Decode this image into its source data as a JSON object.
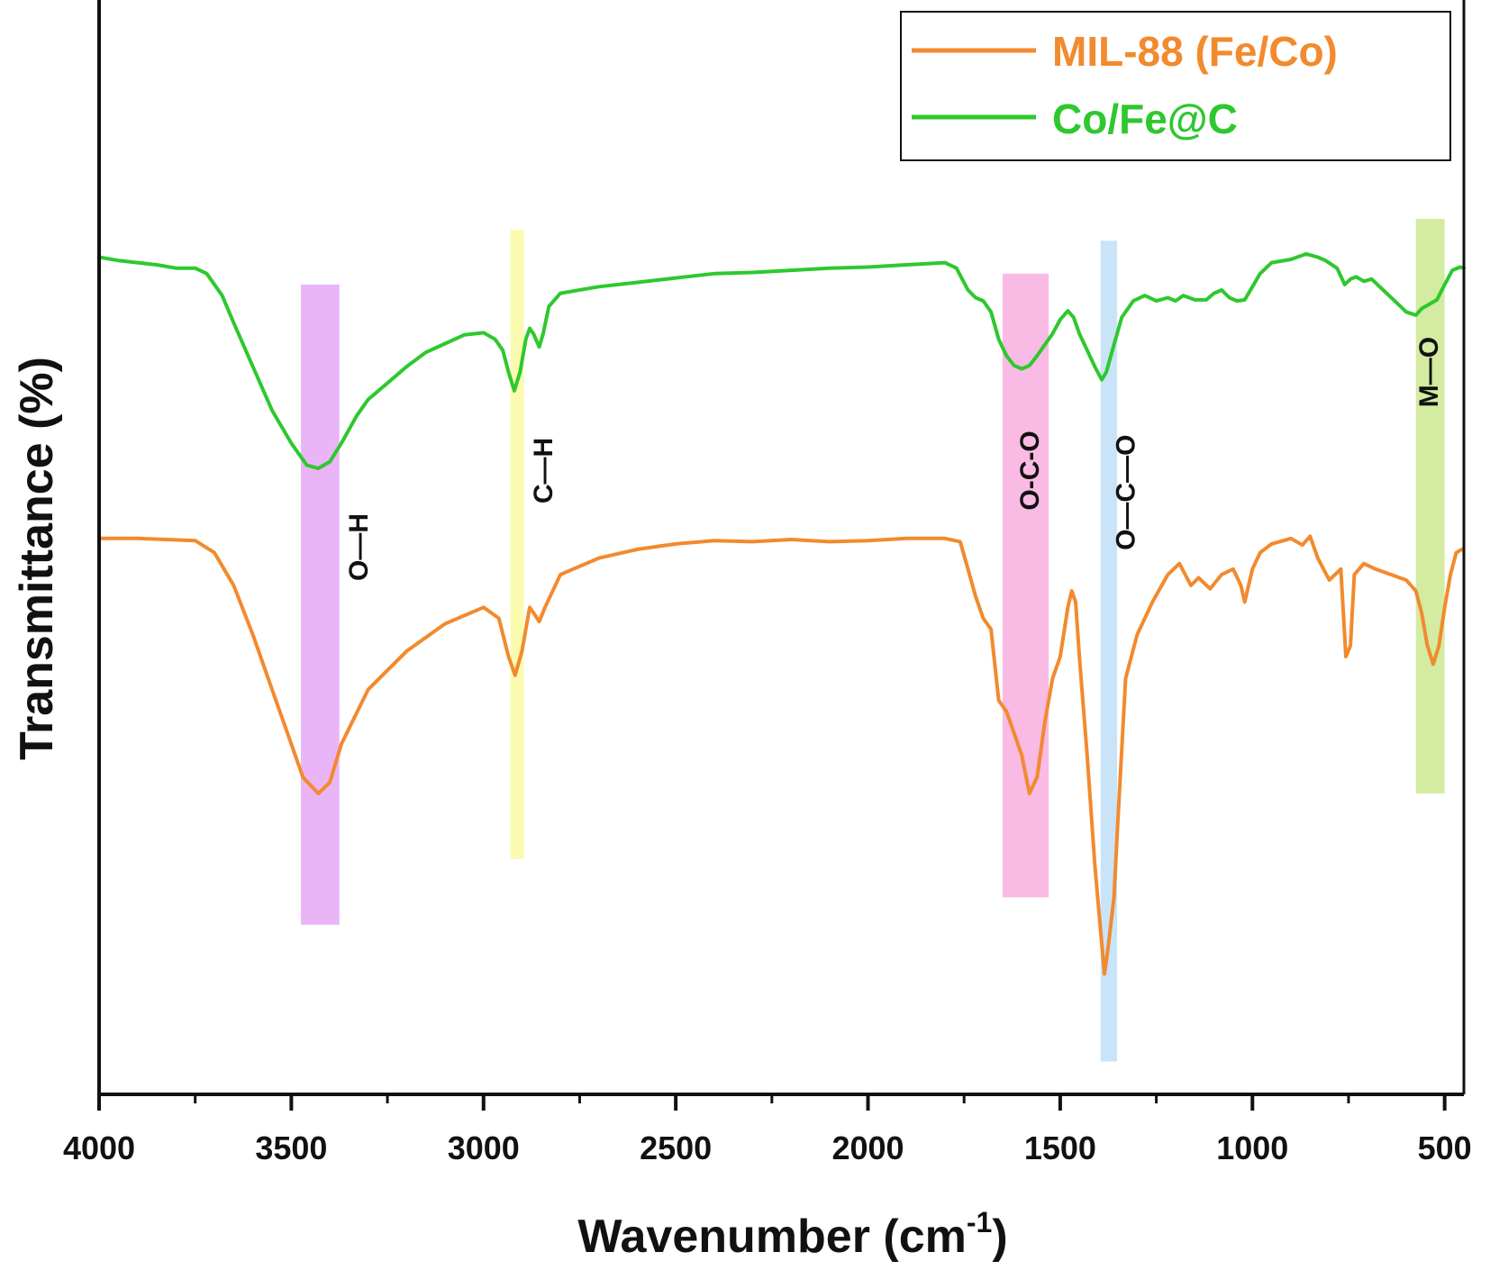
{
  "chart_data": {
    "type": "line",
    "title": "",
    "xlabel": "Wavenumber (cm",
    "xlabel_sup": "-1",
    "xlabel_close": ")",
    "ylabel": "Transmittance (%)",
    "xlim": [
      4000,
      450
    ],
    "ylim": [
      0,
      100
    ],
    "x_ticks": [
      4000,
      3500,
      3000,
      2500,
      2000,
      1500,
      1000,
      500
    ],
    "x_tick_labels": [
      "4000",
      "3500",
      "3000",
      "2500",
      "2000",
      "1500",
      "1000",
      "500"
    ],
    "legend_position": "top-right",
    "legend": [
      {
        "name": "MIL-88 (Fe/Co)",
        "color": "#f28a2e"
      },
      {
        "name": "Co/Fe@C",
        "color": "#2ec82e"
      }
    ],
    "series": [
      {
        "name": "MIL-88 (Fe/Co)",
        "color": "#f28a2e",
        "points": [
          [
            4000,
            50.8
          ],
          [
            3900,
            50.8
          ],
          [
            3750,
            50.6
          ],
          [
            3700,
            49.5
          ],
          [
            3650,
            46.5
          ],
          [
            3600,
            42
          ],
          [
            3550,
            37
          ],
          [
            3500,
            32
          ],
          [
            3470,
            29
          ],
          [
            3430,
            27.5
          ],
          [
            3400,
            28.5
          ],
          [
            3370,
            32
          ],
          [
            3300,
            37
          ],
          [
            3200,
            40.5
          ],
          [
            3100,
            43
          ],
          [
            3000,
            44.5
          ],
          [
            2960,
            43.5
          ],
          [
            2935,
            40
          ],
          [
            2918,
            38.3
          ],
          [
            2900,
            40.5
          ],
          [
            2880,
            44.5
          ],
          [
            2870,
            44
          ],
          [
            2855,
            43.2
          ],
          [
            2840,
            44.5
          ],
          [
            2800,
            47.5
          ],
          [
            2700,
            49
          ],
          [
            2600,
            49.8
          ],
          [
            2500,
            50.3
          ],
          [
            2400,
            50.6
          ],
          [
            2300,
            50.5
          ],
          [
            2200,
            50.7
          ],
          [
            2100,
            50.5
          ],
          [
            2000,
            50.6
          ],
          [
            1900,
            50.8
          ],
          [
            1800,
            50.8
          ],
          [
            1760,
            50.5
          ],
          [
            1740,
            48
          ],
          [
            1720,
            45.5
          ],
          [
            1700,
            43.5
          ],
          [
            1680,
            42.5
          ],
          [
            1660,
            36
          ],
          [
            1640,
            35
          ],
          [
            1620,
            33
          ],
          [
            1600,
            31
          ],
          [
            1580,
            27.5
          ],
          [
            1560,
            29
          ],
          [
            1540,
            34
          ],
          [
            1520,
            38
          ],
          [
            1500,
            40
          ],
          [
            1480,
            44.5
          ],
          [
            1470,
            46
          ],
          [
            1460,
            45
          ],
          [
            1450,
            40
          ],
          [
            1430,
            31
          ],
          [
            1410,
            21
          ],
          [
            1395,
            15
          ],
          [
            1385,
            11
          ],
          [
            1375,
            13.5
          ],
          [
            1360,
            18
          ],
          [
            1350,
            25
          ],
          [
            1330,
            38
          ],
          [
            1300,
            42
          ],
          [
            1260,
            45
          ],
          [
            1220,
            47.5
          ],
          [
            1190,
            48.5
          ],
          [
            1160,
            46.5
          ],
          [
            1140,
            47.2
          ],
          [
            1110,
            46.2
          ],
          [
            1080,
            47.5
          ],
          [
            1050,
            48
          ],
          [
            1030,
            46.5
          ],
          [
            1020,
            45
          ],
          [
            1000,
            48
          ],
          [
            980,
            49.5
          ],
          [
            950,
            50.3
          ],
          [
            900,
            50.8
          ],
          [
            870,
            50.2
          ],
          [
            850,
            51
          ],
          [
            830,
            49
          ],
          [
            800,
            47
          ],
          [
            770,
            48
          ],
          [
            757,
            40
          ],
          [
            745,
            41
          ],
          [
            735,
            47.5
          ],
          [
            710,
            48.5
          ],
          [
            680,
            48
          ],
          [
            640,
            47.5
          ],
          [
            600,
            47
          ],
          [
            575,
            46
          ],
          [
            560,
            44
          ],
          [
            545,
            41
          ],
          [
            530,
            39.3
          ],
          [
            515,
            41
          ],
          [
            500,
            44.5
          ],
          [
            485,
            47.5
          ],
          [
            470,
            49.5
          ],
          [
            455,
            49.8
          ]
        ]
      },
      {
        "name": "Co/Fe@C",
        "color": "#2ec82e",
        "points": [
          [
            4000,
            76.5
          ],
          [
            3950,
            76.2
          ],
          [
            3900,
            76
          ],
          [
            3850,
            75.8
          ],
          [
            3800,
            75.5
          ],
          [
            3750,
            75.5
          ],
          [
            3720,
            75
          ],
          [
            3680,
            73
          ],
          [
            3650,
            70.5
          ],
          [
            3600,
            66.5
          ],
          [
            3550,
            62.5
          ],
          [
            3500,
            59.5
          ],
          [
            3460,
            57.5
          ],
          [
            3430,
            57.2
          ],
          [
            3400,
            57.8
          ],
          [
            3370,
            59.5
          ],
          [
            3330,
            62
          ],
          [
            3300,
            63.5
          ],
          [
            3250,
            65
          ],
          [
            3200,
            66.5
          ],
          [
            3150,
            67.8
          ],
          [
            3100,
            68.6
          ],
          [
            3050,
            69.4
          ],
          [
            3000,
            69.6
          ],
          [
            2970,
            69
          ],
          [
            2950,
            68
          ],
          [
            2935,
            66
          ],
          [
            2920,
            64.3
          ],
          [
            2905,
            66
          ],
          [
            2890,
            69
          ],
          [
            2880,
            70
          ],
          [
            2870,
            69.5
          ],
          [
            2855,
            68.3
          ],
          [
            2845,
            69.5
          ],
          [
            2830,
            72
          ],
          [
            2800,
            73.2
          ],
          [
            2700,
            73.8
          ],
          [
            2600,
            74.2
          ],
          [
            2500,
            74.6
          ],
          [
            2400,
            75
          ],
          [
            2300,
            75.1
          ],
          [
            2200,
            75.3
          ],
          [
            2100,
            75.5
          ],
          [
            2000,
            75.6
          ],
          [
            1900,
            75.8
          ],
          [
            1800,
            76
          ],
          [
            1770,
            75.5
          ],
          [
            1740,
            73.5
          ],
          [
            1720,
            72.8
          ],
          [
            1700,
            72.5
          ],
          [
            1680,
            71.5
          ],
          [
            1660,
            69
          ],
          [
            1640,
            67.5
          ],
          [
            1620,
            66.6
          ],
          [
            1600,
            66.3
          ],
          [
            1580,
            66.6
          ],
          [
            1560,
            67.5
          ],
          [
            1540,
            68.5
          ],
          [
            1520,
            69.5
          ],
          [
            1500,
            70.8
          ],
          [
            1480,
            71.6
          ],
          [
            1465,
            71
          ],
          [
            1450,
            69.5
          ],
          [
            1430,
            68
          ],
          [
            1410,
            66.5
          ],
          [
            1392,
            65.3
          ],
          [
            1380,
            66
          ],
          [
            1360,
            68.5
          ],
          [
            1340,
            71
          ],
          [
            1310,
            72.5
          ],
          [
            1280,
            73
          ],
          [
            1250,
            72.5
          ],
          [
            1220,
            72.8
          ],
          [
            1200,
            72.5
          ],
          [
            1180,
            73
          ],
          [
            1150,
            72.6
          ],
          [
            1120,
            72.6
          ],
          [
            1100,
            73.2
          ],
          [
            1080,
            73.5
          ],
          [
            1060,
            72.8
          ],
          [
            1040,
            72.5
          ],
          [
            1020,
            72.6
          ],
          [
            1000,
            73.8
          ],
          [
            980,
            75
          ],
          [
            950,
            76
          ],
          [
            900,
            76.3
          ],
          [
            860,
            76.8
          ],
          [
            830,
            76.5
          ],
          [
            810,
            76.2
          ],
          [
            780,
            75.5
          ],
          [
            760,
            74
          ],
          [
            745,
            74.5
          ],
          [
            730,
            74.7
          ],
          [
            710,
            74.3
          ],
          [
            690,
            74.5
          ],
          [
            660,
            73.5
          ],
          [
            630,
            72.5
          ],
          [
            600,
            71.5
          ],
          [
            575,
            71.2
          ],
          [
            560,
            71.8
          ],
          [
            540,
            72.2
          ],
          [
            520,
            72.6
          ],
          [
            500,
            74
          ],
          [
            480,
            75.3
          ],
          [
            460,
            75.6
          ],
          [
            450,
            75.5
          ]
        ]
      }
    ],
    "bands": [
      {
        "label": "O—H",
        "from": 3475,
        "to": 3375,
        "color": "#dd88f2",
        "ymin": 15.5,
        "ymax": 74,
        "label_x": 3320,
        "label_y": 50
      },
      {
        "label": "C—H",
        "from": 2930,
        "to": 2895,
        "color": "#f8f880",
        "ymin": 21.5,
        "ymax": 79,
        "label_x": 2840,
        "label_y": 57
      },
      {
        "label": "O-C-O",
        "from": 1650,
        "to": 1530,
        "color": "#f590d2",
        "ymin": 18,
        "ymax": 75,
        "label_x": 1575,
        "label_y": 57
      },
      {
        "label": "O—C—O",
        "from": 1395,
        "to": 1352,
        "color": "#a8d4f5",
        "ymin": 3,
        "ymax": 78,
        "label_x": 1325,
        "label_y": 55
      },
      {
        "label": "M—O",
        "from": 575,
        "to": 500,
        "color": "#b8e068",
        "ymin": 27.5,
        "ymax": 80,
        "label_x": 537,
        "label_y": 66
      }
    ]
  }
}
